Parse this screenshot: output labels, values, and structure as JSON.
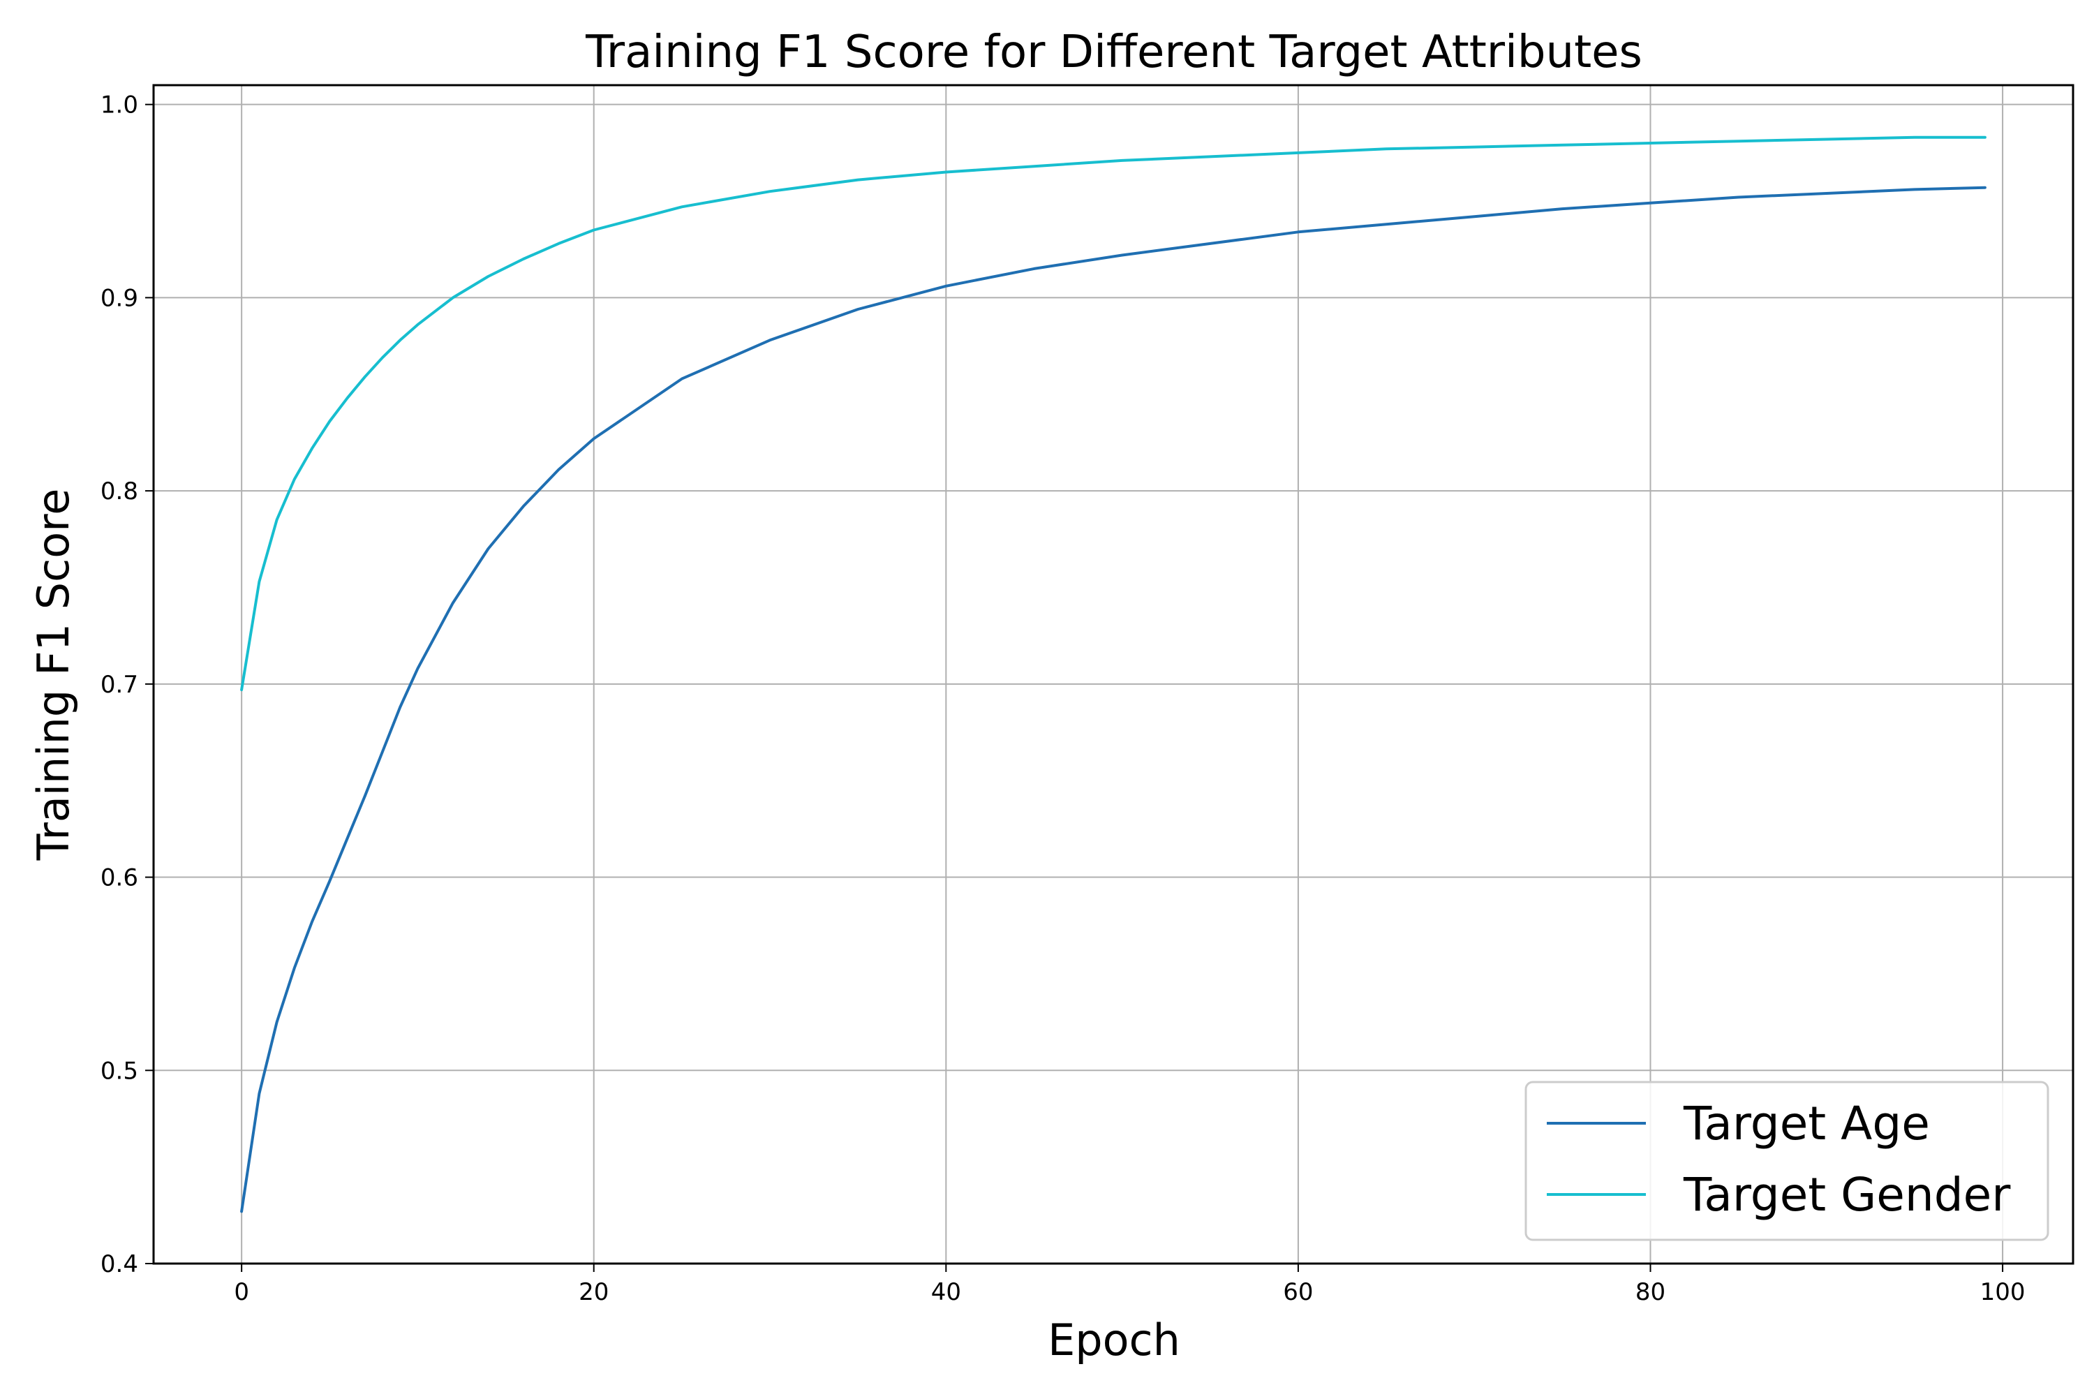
{
  "chart_data": {
    "type": "line",
    "title": "Training F1 Score for Different Target Attributes",
    "xlabel": "Epoch",
    "ylabel": "Training F1 Score",
    "xlim": [
      -5,
      104
    ],
    "ylim": [
      0.4,
      1.01
    ],
    "xticks": [
      0,
      20,
      40,
      60,
      80,
      100
    ],
    "xtick_labels": [
      "0",
      "20",
      "40",
      "60",
      "80",
      "100"
    ],
    "yticks": [
      0.4,
      0.5,
      0.6,
      0.7,
      0.8,
      0.9,
      1.0
    ],
    "ytick_labels": [
      "0.4",
      "0.5",
      "0.6",
      "0.7",
      "0.8",
      "0.9",
      "1.0"
    ],
    "grid": true,
    "legend_position": "lower-right",
    "x": [
      0,
      1,
      2,
      3,
      4,
      5,
      6,
      7,
      8,
      9,
      10,
      12,
      14,
      16,
      18,
      20,
      25,
      30,
      35,
      40,
      45,
      50,
      55,
      60,
      65,
      70,
      75,
      80,
      85,
      90,
      95,
      99
    ],
    "series": [
      {
        "name": "Target Age",
        "color": "#1f6fb2",
        "values": [
          0.427,
          0.488,
          0.525,
          0.553,
          0.577,
          0.598,
          0.62,
          0.642,
          0.665,
          0.688,
          0.708,
          0.742,
          0.77,
          0.792,
          0.811,
          0.827,
          0.858,
          0.878,
          0.894,
          0.906,
          0.915,
          0.922,
          0.928,
          0.934,
          0.938,
          0.942,
          0.946,
          0.949,
          0.952,
          0.954,
          0.956,
          0.957
        ]
      },
      {
        "name": "Target Gender",
        "color": "#17becf",
        "values": [
          0.697,
          0.753,
          0.785,
          0.806,
          0.822,
          0.836,
          0.848,
          0.859,
          0.869,
          0.878,
          0.886,
          0.9,
          0.911,
          0.92,
          0.928,
          0.935,
          0.947,
          0.955,
          0.961,
          0.965,
          0.968,
          0.971,
          0.973,
          0.975,
          0.977,
          0.978,
          0.979,
          0.98,
          0.981,
          0.982,
          0.983,
          0.983
        ]
      }
    ]
  }
}
